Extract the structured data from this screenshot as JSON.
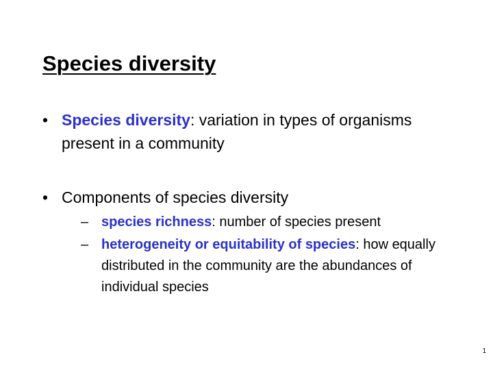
{
  "slide": {
    "title": "Species diversity",
    "bullets": [
      {
        "marker": "•",
        "term": "Species diversity",
        "text": ": variation in types of organisms present in a community"
      },
      {
        "marker": "•",
        "text": "Components of species diversity",
        "sub_bullets": [
          {
            "marker": "–",
            "term": "species richness",
            "text": ": number of species present"
          },
          {
            "marker": "–",
            "term": "heterogeneity or equitability of species",
            "text": ": how equally distributed in the community are the abundances of individual species"
          }
        ]
      }
    ],
    "page_number": "1"
  },
  "colors": {
    "term": "#2b31c9",
    "text": "#000000",
    "background": "#ffffff"
  }
}
